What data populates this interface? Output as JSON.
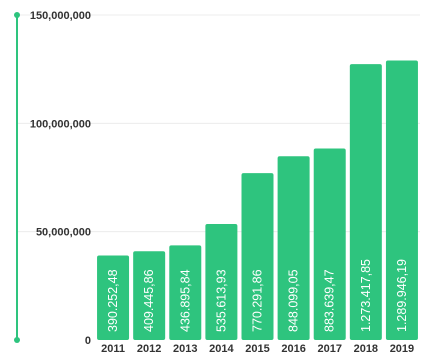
{
  "colors": {
    "bar": "#2ec47e",
    "axis": "#2ec47e",
    "grid": "#ececec",
    "text": "#333333",
    "bar_label": "#ffffff"
  },
  "chart_data": {
    "type": "bar",
    "title": "",
    "xlabel": "",
    "ylabel": "",
    "ylim": [
      0,
      150000000
    ],
    "grid": true,
    "legend": "none",
    "y_ticks": [
      {
        "value": 0,
        "label": "0"
      },
      {
        "value": 50000000,
        "label": "50,000,000"
      },
      {
        "value": 100000000,
        "label": "100,000,000"
      },
      {
        "value": 150000000,
        "label": "150,000,000"
      }
    ],
    "categories": [
      "2011",
      "2012",
      "2013",
      "2014",
      "2015",
      "2016",
      "2017",
      "2018",
      "2019"
    ],
    "values": [
      39025248,
      40944586,
      43689584,
      53561393,
      77029186,
      84809905,
      88363947,
      127341785,
      128994619
    ],
    "data_labels": [
      "390.252,48",
      "409.445,86",
      "436.895,84",
      "535.613,93",
      "770.291,86",
      "848.099,05",
      "883.639,47",
      "1.273.417,85",
      "1.289.946,19"
    ]
  }
}
